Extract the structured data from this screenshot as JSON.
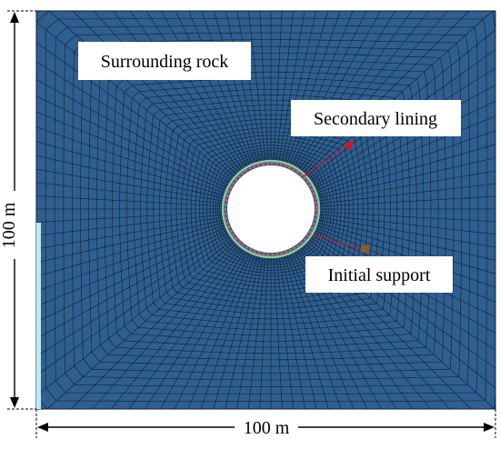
{
  "labels": {
    "surrounding_rock": "Surrounding rock",
    "secondary_lining": "Secondary lining",
    "initial_support": "Initial support"
  },
  "dimensions": {
    "height": "100 m",
    "width": "100 m"
  },
  "colors": {
    "mesh_fill": "#2f5f8f",
    "mesh_line": "#0c1c30",
    "tunnel_opening": "#ffffff",
    "secondary_lining_ring": "#e65a4a",
    "initial_support_ring": "#8fc5a0",
    "leader_line": "#e01020",
    "boundary_strip": "#bfe6f2",
    "label_box": "#ffffff"
  }
}
